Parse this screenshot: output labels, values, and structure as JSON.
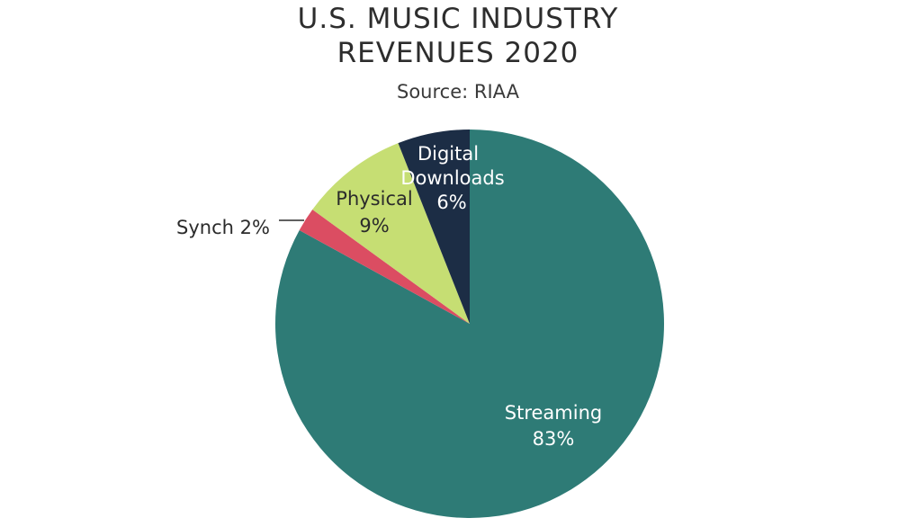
{
  "header": {
    "title_line1": "U.S. MUSIC INDUSTRY",
    "title_line2": "REVENUES 2020",
    "subtitle": "Source: RIAA"
  },
  "chart_data": {
    "type": "pie",
    "title": "U.S. MUSIC INDUSTRY REVENUES 2020",
    "subtitle": "Source: RIAA",
    "slices": [
      {
        "label": "Streaming",
        "value": 83,
        "value_label": "83%",
        "color": "#2e7b76"
      },
      {
        "label": "Synch",
        "value": 2,
        "value_label": "2%",
        "color": "#db4d62"
      },
      {
        "label": "Physical",
        "value": 9,
        "value_label": "9%",
        "color": "#c6de73"
      },
      {
        "label": "Digital Downloads",
        "value": 6,
        "value_label": "6%",
        "color": "#1c2d45"
      }
    ],
    "start_angle_deg": 0,
    "direction": "clockwise",
    "legend": "none"
  }
}
